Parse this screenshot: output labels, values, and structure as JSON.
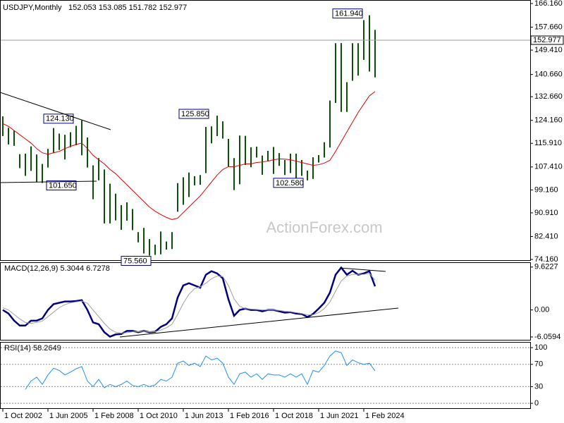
{
  "chart_data": [
    {
      "type": "range",
      "title": "USDJPY,Monthly",
      "subtitle": "152.053 153.085 151.782 152.977",
      "categories": [
        "1 Oct 2002",
        null,
        null,
        null,
        null,
        null,
        null,
        null,
        "1 Jun 2005",
        null,
        null,
        null,
        null,
        null,
        null,
        null,
        "1 Feb 2008",
        null,
        null,
        null,
        null,
        null,
        null,
        null,
        "1 Oct 2010",
        null,
        null,
        null,
        null,
        null,
        null,
        null,
        "1 Jun 2013",
        null,
        null,
        null,
        null,
        null,
        null,
        null,
        "1 Feb 2016",
        null,
        null,
        null,
        null,
        null,
        null,
        null,
        "1 Oct 2018",
        null,
        null,
        null,
        null,
        null,
        null,
        null,
        "1 Jun 2021",
        null,
        null,
        null,
        null,
        null,
        null,
        null,
        "1 Feb 2024",
        null,
        null
      ],
      "high": [
        125.6,
        121.5,
        120.5,
        112,
        112.2,
        114.8,
        111.9,
        108.5,
        113.9,
        121.4,
        119.4,
        119,
        119.9,
        122.2,
        124.13,
        118,
        108,
        110.6,
        106.5,
        101.4,
        97.8,
        93.7,
        94.7,
        92.3,
        84,
        85.5,
        81.5,
        79.5,
        84.2,
        80.6,
        84,
        101.6,
        103.7,
        105.4,
        104.1,
        104.5,
        121.8,
        122,
        125.85,
        123.8,
        117.5,
        110.6,
        118.7,
        118.6,
        114.5,
        114.7,
        111.5,
        113.2,
        114.6,
        112.4,
        109.9,
        112.2,
        112.2,
        109.9,
        106.1,
        110.9,
        111.7,
        116.3,
        131.3,
        151.9,
        151.95,
        137.9,
        151.9,
        151.9,
        160.2,
        161.94,
        156.7
      ],
      "low": [
        118.5,
        115.5,
        115,
        107,
        104.2,
        106,
        102,
        101.65,
        107.2,
        112.5,
        113.5,
        110.1,
        114.5,
        115.2,
        111.6,
        107.2,
        95.8,
        102.6,
        87.1,
        87.1,
        88.2,
        84.8,
        88.1,
        84.7,
        80.3,
        76.3,
        75.56,
        75.8,
        76,
        77.7,
        77.9,
        91.3,
        93.8,
        96.6,
        100.8,
        101,
        105.2,
        115.9,
        118.5,
        117.6,
        107.6,
        99.1,
        101.2,
        108.1,
        107.3,
        110.8,
        104.6,
        109.5,
        104.9,
        107.8,
        104.5,
        105.2,
        101.2,
        104.2,
        102.58,
        103.1,
        109,
        110.8,
        114.4,
        130.4,
        127.2,
        127.2,
        138.4,
        140.25,
        145.9,
        141.7,
        139.6
      ],
      "bar_color": "#0b4f0b",
      "moving_average": {
        "color": "#e00000",
        "values": [
          123,
          122,
          120.5,
          119,
          117.5,
          116,
          114,
          112.5,
          112,
          112.5,
          113,
          114,
          114.8,
          115.5,
          116,
          114,
          111.6,
          110,
          108.5,
          106.5,
          105,
          103,
          101,
          99,
          97,
          95,
          93,
          91.5,
          90.3,
          89.3,
          88.5,
          89,
          91,
          93,
          95,
          97,
          99.5,
          102,
          104.5,
          106.5,
          107.5,
          107.5,
          108,
          108.5,
          108.5,
          109,
          109.2,
          109.5,
          110,
          110.3,
          110.2,
          110,
          109.5,
          109,
          108.5,
          108,
          108.2,
          108.8,
          109.8,
          113,
          116.5,
          120,
          123.5,
          127,
          130,
          133,
          134.5
        ]
      },
      "ylim": [
        74.16,
        166.16
      ],
      "yticks": [
        {
          "value": 166.16,
          "label": "166.160"
        },
        {
          "value": 157.66,
          "label": "157.660"
        },
        {
          "value": 149.41,
          "label": "149.410"
        },
        {
          "value": 140.66,
          "label": "140.660"
        },
        {
          "value": 132.66,
          "label": "132.660"
        },
        {
          "value": 124.16,
          "label": "124.160"
        },
        {
          "value": 115.91,
          "label": "115.910"
        },
        {
          "value": 107.41,
          "label": "107.410"
        },
        {
          "value": 99.16,
          "label": "99.160"
        },
        {
          "value": 90.91,
          "label": "90.910"
        },
        {
          "value": 82.41,
          "label": "82.410"
        },
        {
          "value": 74.16,
          "label": "74.160"
        }
      ],
      "last_price": {
        "value": 152.977,
        "label": "152.977"
      },
      "annotations": [
        {
          "value": 161.94,
          "label": "161.940"
        },
        {
          "value": 125.85,
          "label": "125.850"
        },
        {
          "value": 124.13,
          "label": "124.130"
        },
        {
          "value": 101.65,
          "label": "101.650"
        },
        {
          "value": 102.58,
          "label": "102.580"
        },
        {
          "value": 75.56,
          "label": "75.560"
        }
      ],
      "watermark": "ActionForex.com"
    },
    {
      "type": "line",
      "title": "MACD(12,26,9) 5.3044 6.7278",
      "series": [
        {
          "color": "#000080",
          "values": [
            0,
            -0.8,
            -2.4,
            -3.5,
            -3.5,
            -2.4,
            -2.4,
            -1.9,
            0,
            1.3,
            1.6,
            1.9,
            1.9,
            2,
            2.2,
            0,
            -2.8,
            -3.2,
            -5,
            -6,
            -5.5,
            -5.4,
            -4.7,
            -4.7,
            -5,
            -4.7,
            -5,
            -4.9,
            -3.8,
            -3.2,
            -1.9,
            2.8,
            5.5,
            6,
            5.5,
            5,
            7.9,
            8.7,
            8.2,
            7.1,
            2.4,
            -1.3,
            0,
            0.3,
            0,
            0,
            -0.3,
            0,
            0,
            -0.3,
            -0.6,
            -0.5,
            -0.8,
            -0.9,
            -1.6,
            -0.9,
            0.3,
            1.6,
            3.9,
            7.9,
            9.5,
            7.9,
            8.8,
            7.9,
            8.2,
            8.7,
            5.3
          ]
        },
        {
          "color": "#a0a0a0",
          "values": [
            0.5,
            0,
            -1,
            -2,
            -2.8,
            -3,
            -2.8,
            -2.5,
            -1.5,
            -0.5,
            0.5,
            1.2,
            1.6,
            1.8,
            2,
            1.5,
            0,
            -1.5,
            -3,
            -4.3,
            -5,
            -5.2,
            -5.1,
            -4.9,
            -4.9,
            -4.8,
            -4.9,
            -4.9,
            -4.5,
            -4,
            -3.2,
            -1,
            1.5,
            3.5,
            4.8,
            5.2,
            6,
            7,
            7.6,
            7.5,
            5.5,
            2.5,
            0.8,
            0.3,
            0.2,
            0.1,
            0,
            0,
            0,
            -0.1,
            -0.3,
            -0.4,
            -0.6,
            -0.8,
            -1.1,
            -1.1,
            -0.6,
            0.3,
            1.8,
            4.2,
            6.5,
            7.6,
            8,
            8,
            8,
            8.2,
            6.7
          ]
        }
      ],
      "ylim": [
        -6.7,
        10.7
      ],
      "yticks": [
        {
          "value": 9.6227,
          "label": "9.6227"
        },
        {
          "value": 0,
          "label": "0.00"
        },
        {
          "value": -6.0594,
          "label": "-6.0594"
        }
      ]
    },
    {
      "type": "line",
      "title": "RSI(14) 58.2649",
      "series": [
        {
          "color": "#1e90ff",
          "values": [
            null,
            null,
            null,
            null,
            25,
            40,
            47,
            34,
            51,
            63,
            59,
            51,
            56,
            62,
            66,
            40,
            30,
            43,
            28,
            34,
            30,
            34,
            40,
            32,
            30,
            34,
            30,
            33,
            43,
            40,
            47,
            72,
            76,
            68,
            72,
            66,
            85,
            78,
            81,
            72,
            47,
            34,
            53,
            56,
            47,
            53,
            43,
            53,
            51,
            51,
            47,
            53,
            47,
            53,
            34,
            59,
            56,
            68,
            85,
            94,
            91,
            68,
            78,
            73,
            70,
            72,
            58.26
          ]
        }
      ],
      "ylim": [
        -10,
        109
      ],
      "yticks": [
        100,
        70,
        30,
        0
      ],
      "grid": true
    }
  ]
}
